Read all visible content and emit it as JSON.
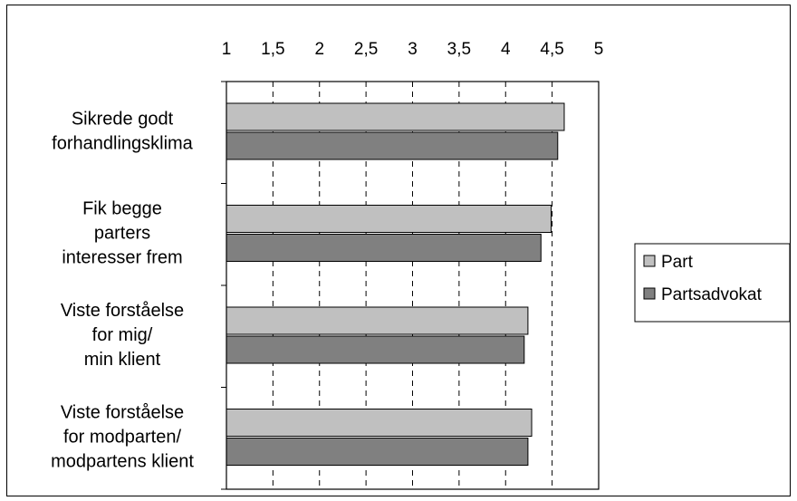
{
  "chart_data": {
    "type": "bar",
    "orientation": "horizontal",
    "xlim": [
      1,
      5
    ],
    "ticks": [
      "1",
      "1,5",
      "2",
      "2,5",
      "3",
      "3,5",
      "4",
      "4,5",
      "5"
    ],
    "tick_values": [
      1,
      1.5,
      2,
      2.5,
      3,
      3.5,
      4,
      4.5,
      5
    ],
    "categories": [
      [
        "Sikrede godt",
        "forhandlingsklima"
      ],
      [
        "Fik begge",
        "parters",
        "interesser frem"
      ],
      [
        "Viste forståelse",
        "for mig/",
        "min klient"
      ],
      [
        "Viste forståelse",
        "for modparten/",
        "modpartens klient"
      ]
    ],
    "series": [
      {
        "name": "Part",
        "color": "#c0c0c0",
        "values": [
          4.63,
          4.49,
          4.24,
          4.28
        ]
      },
      {
        "name": "Partsadvokat",
        "color": "#808080",
        "values": [
          4.56,
          4.38,
          4.2,
          4.24
        ]
      }
    ],
    "grid": "vertical dashed",
    "legend": "right"
  }
}
